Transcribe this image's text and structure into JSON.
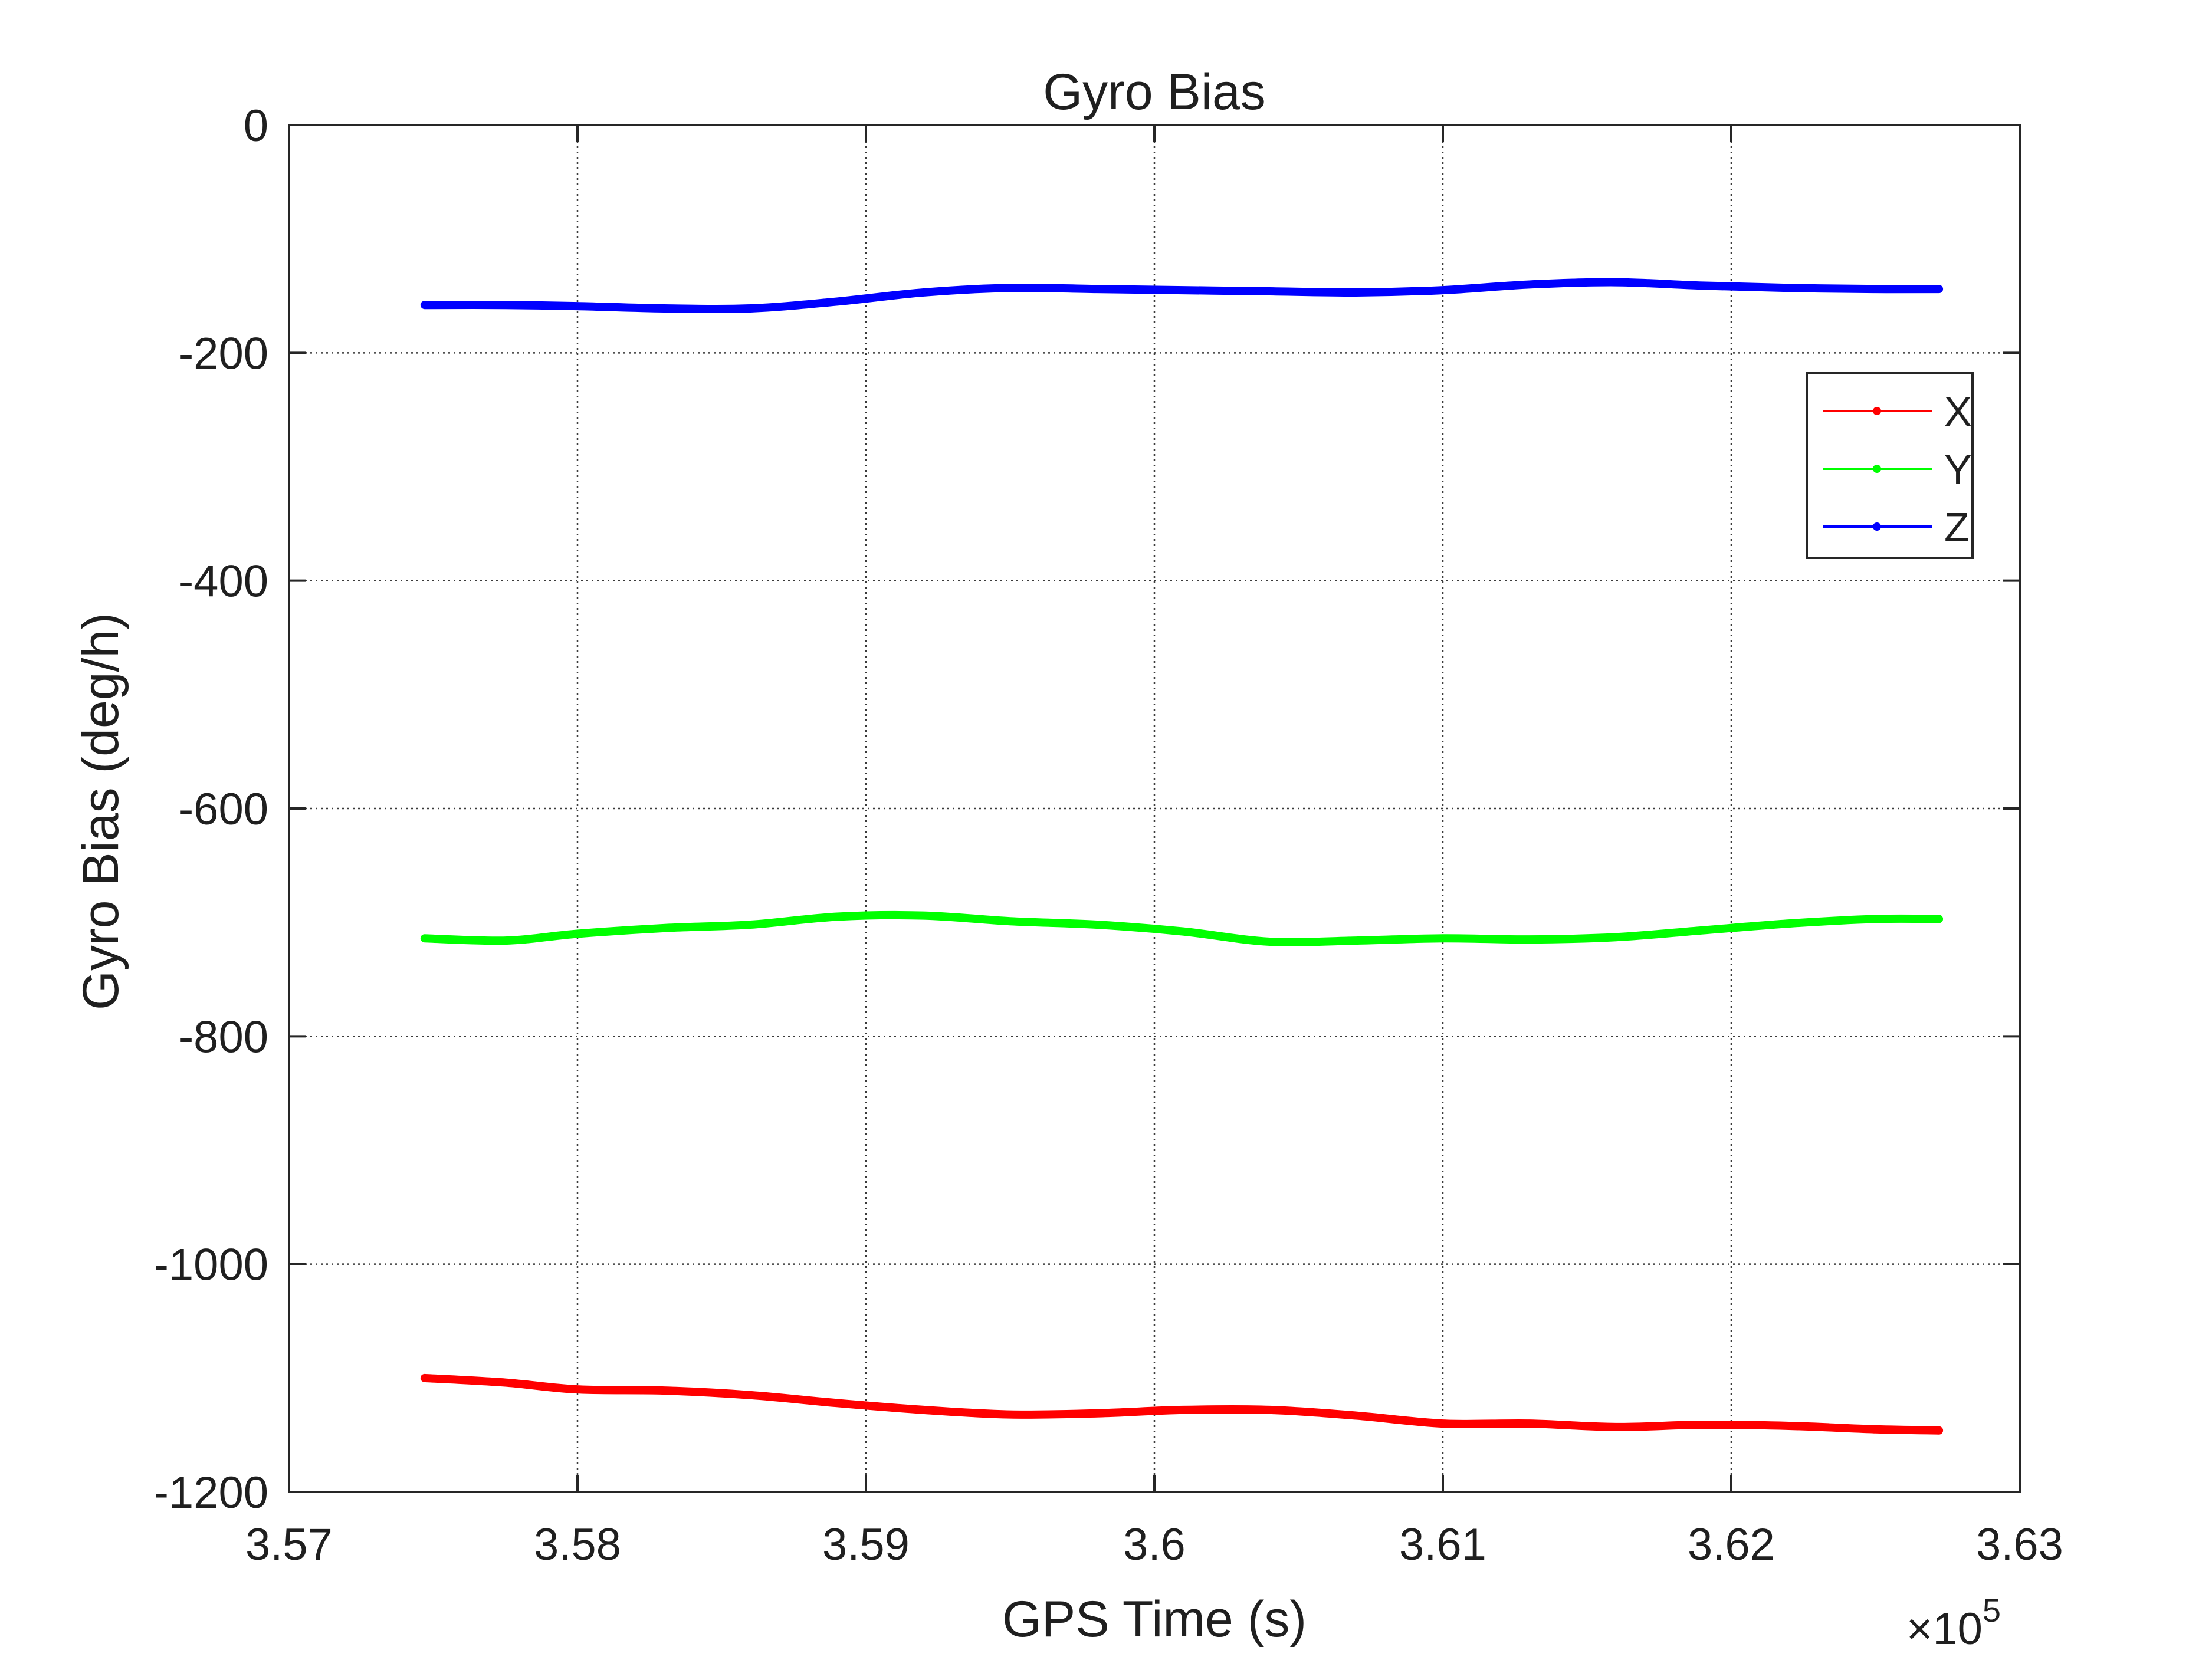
{
  "chart_data": {
    "type": "line",
    "title": "Gyro Bias",
    "xlabel": "GPS Time (s)",
    "ylabel": "Gyro Bias (deg/h)",
    "x_exponent_label": "×10",
    "x_exponent_power": "5",
    "xlim": [
      3.57,
      3.63
    ],
    "ylim": [
      -1200,
      0
    ],
    "x_ticks": [
      3.57,
      3.58,
      3.59,
      3.6,
      3.61,
      3.62,
      3.63
    ],
    "x_tick_labels": [
      "3.57",
      "3.58",
      "3.59",
      "3.6",
      "3.61",
      "3.62",
      "3.63"
    ],
    "y_ticks": [
      0,
      -200,
      -400,
      -600,
      -800,
      -1000,
      -1200
    ],
    "y_tick_labels": [
      "0",
      "-200",
      "-400",
      "-600",
      "-800",
      "-1000",
      "-1200"
    ],
    "grid": true,
    "legend_position": "top-right",
    "x": [
      3.5747,
      3.5775,
      3.58,
      3.583,
      3.586,
      3.589,
      3.592,
      3.595,
      3.598,
      3.601,
      3.604,
      3.607,
      3.61,
      3.613,
      3.616,
      3.619,
      3.622,
      3.625,
      3.6272
    ],
    "series": [
      {
        "name": "X",
        "color": "#ff0000",
        "values": [
          -1100,
          -1104,
          -1110,
          -1111,
          -1115,
          -1122,
          -1128,
          -1132,
          -1131,
          -1128,
          -1128,
          -1133,
          -1140,
          -1140,
          -1143,
          -1141,
          -1142,
          -1145,
          -1146
        ]
      },
      {
        "name": "Y",
        "color": "#00ff00",
        "values": [
          -714,
          -716,
          -710,
          -705,
          -702,
          -695,
          -694,
          -699,
          -702,
          -708,
          -717,
          -716,
          -714,
          -715,
          -713,
          -707,
          -701,
          -697,
          -697
        ]
      },
      {
        "name": "Z",
        "color": "#0000ff",
        "values": [
          -158,
          -158,
          -159,
          -161,
          -161,
          -155,
          -147,
          -143,
          -144,
          -145,
          -146,
          -147,
          -145,
          -140,
          -138,
          -141,
          -143,
          -144,
          -144
        ]
      }
    ]
  }
}
